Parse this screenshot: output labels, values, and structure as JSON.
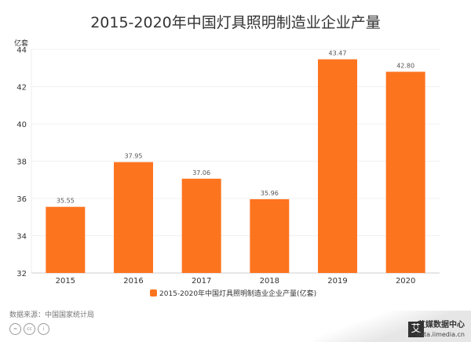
{
  "chart_data": {
    "type": "bar",
    "title": "2015-2020年中国灯具照明制造业企业产量",
    "ylabel": "亿套",
    "xlabel": "",
    "categories": [
      "2015",
      "2016",
      "2017",
      "2018",
      "2019",
      "2020"
    ],
    "series": [
      {
        "name": "2015-2020年中国灯具照明制造业企业产量(亿套)",
        "values": [
          35.55,
          37.95,
          37.06,
          35.96,
          43.47,
          42.8
        ],
        "labels": [
          "35.55",
          "37.95",
          "37.06",
          "35.96",
          "43.47",
          "42.80"
        ]
      }
    ],
    "ylim": [
      32,
      44
    ],
    "yticks": [
      "32",
      "34",
      "36",
      "38",
      "40",
      "42",
      "44"
    ],
    "grid": true,
    "legend": "bottom",
    "color": "#fd741f"
  },
  "footer": {
    "source": "数据来源：中国国家统计局",
    "cc_icons": [
      "=",
      "cc",
      "i"
    ],
    "watermark_name": "艾媒数据中心",
    "watermark_url": "data.iimedia.cn",
    "watermark_logo": "艾"
  }
}
